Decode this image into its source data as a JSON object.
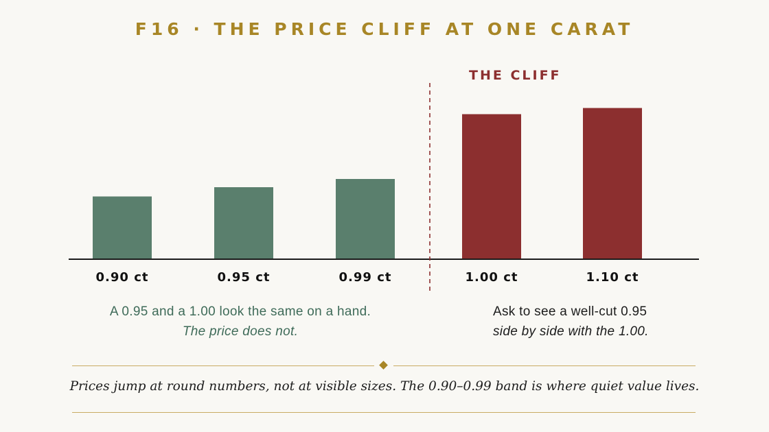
{
  "title": "F16 · THE PRICE CLIFF AT ONE CARAT",
  "colors": {
    "below_cliff": "#5a7f6d",
    "cliff": "#8c2f2f",
    "accent_gold": "#a88626",
    "text_green": "#3f6b59"
  },
  "chart_data": {
    "type": "bar",
    "categories": [
      "0.90 ct",
      "0.95 ct",
      "0.99 ct",
      "1.00 ct",
      "1.10 ct"
    ],
    "values": [
      61,
      70,
      78,
      141,
      147
    ],
    "ylim": [
      0,
      160
    ],
    "groups": [
      "below",
      "below",
      "below",
      "cliff",
      "cliff"
    ],
    "cliff_label": "THE CLIFF",
    "cliff_between": [
      "0.99 ct",
      "1.00 ct"
    ],
    "grid": false,
    "xlabel": "",
    "ylabel": ""
  },
  "notes": {
    "left_line1": "A 0.95 and a 1.00 look the same on a hand.",
    "left_line2": "The price does not.",
    "right_line1": "Ask to see a well-cut 0.95",
    "right_line2": "side by side with the 1.00."
  },
  "footer": "Prices jump at round numbers, not at visible sizes. The 0.90–0.99 band is where quiet value lives."
}
